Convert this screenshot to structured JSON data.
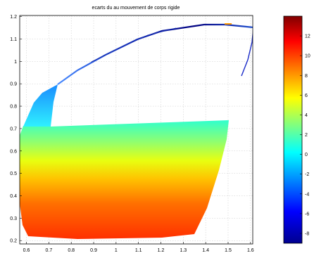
{
  "chart_data": {
    "type": "heatmap",
    "title": "ecarts du au mouvement de corps rigide",
    "xlabel": "",
    "ylabel": "",
    "xlim": [
      0.57,
      1.61
    ],
    "ylim": [
      0.185,
      1.205
    ],
    "xticks": [
      0.6,
      0.7,
      0.8,
      0.9,
      1,
      1.1,
      1.2,
      1.3,
      1.4,
      1.5,
      1.6
    ],
    "yticks": [
      0.2,
      0.3,
      0.4,
      0.5,
      0.6,
      0.7,
      0.8,
      0.9,
      1,
      1.1,
      1.2
    ],
    "grid": true,
    "colormap": "jet",
    "colorbar": {
      "range": [
        -9,
        14
      ],
      "ticks": [
        -8,
        -6,
        -4,
        -2,
        0,
        2,
        4,
        6,
        8,
        10,
        12
      ]
    },
    "surface": {
      "description_of_values": "field value over a planar region of a car door shape",
      "gradient": [
        {
          "y": 0.74,
          "value": 0.5
        },
        {
          "y": 0.6,
          "value": 2.5
        },
        {
          "y": 0.5,
          "value": 5
        },
        {
          "y": 0.4,
          "value": 8
        },
        {
          "y": 0.3,
          "value": 10
        },
        {
          "y": 0.22,
          "value": 11.5
        }
      ],
      "window_frame": [
        {
          "x": 0.615,
          "y": 0.72,
          "value": -1
        },
        {
          "x": 0.66,
          "y": 0.83,
          "value": -2
        },
        {
          "x": 0.75,
          "y": 0.9,
          "value": -3
        },
        {
          "x": 1.0,
          "y": 1.05,
          "value": -7
        },
        {
          "x": 1.2,
          "y": 1.14,
          "value": -8
        },
        {
          "x": 1.41,
          "y": 1.165,
          "value": -7
        },
        {
          "x": 1.5,
          "y": 1.17,
          "value": 9
        },
        {
          "x": 1.61,
          "y": 1.15,
          "value": -6
        }
      ]
    }
  }
}
